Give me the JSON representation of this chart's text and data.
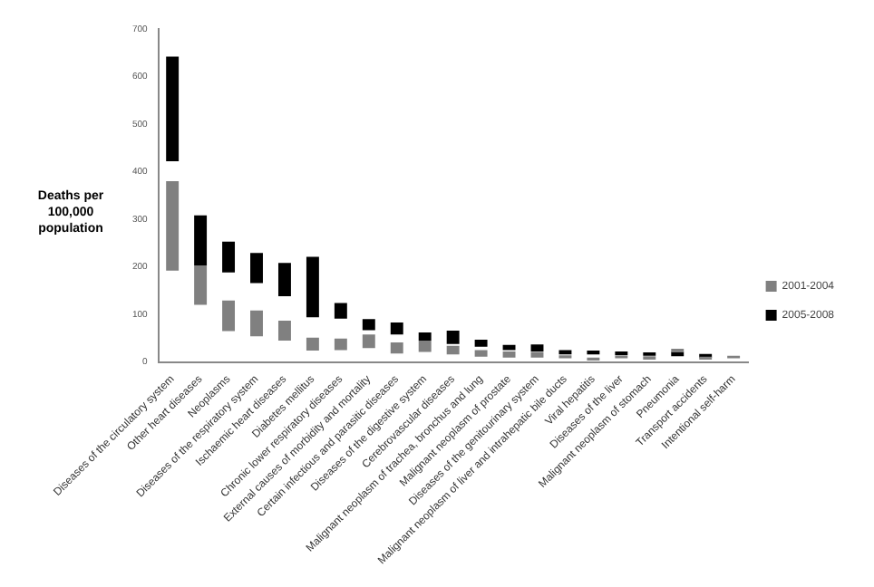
{
  "chart_data": {
    "type": "bar",
    "ylabel": "Deaths per 100,000 population",
    "categories": [
      "Diseases of the circulatory system",
      "Other heart diseases",
      "Neoplasms",
      "Diseases of the respiratory system",
      "Ischaemic heart diseases",
      "Diabetes mellitus",
      "Chronic lower respiratory diseases",
      "External causes of morbidity and mortality",
      "Certain infectious and parasitic diseases",
      "Diseases of the digestive system",
      "Cerebrovascular diseases",
      "Malignant neoplasm of trachea, bronchus and lung",
      "Malignant neoplasm of prostate",
      "Diseases of the genitourinary system",
      "Malignant neoplasm of liver and intrahepatic bile ducts",
      "Viral hepatitis",
      "Diseases of the liver",
      "Malignant neoplasm of stomach",
      "Pneumonia",
      "Transport accidents",
      "Intentional self-harm"
    ],
    "series": [
      {
        "name": "2001-2004",
        "color": "#808080",
        "base": [
          192,
          120,
          65,
          54,
          45,
          24,
          25,
          29,
          18,
          21,
          16,
          11,
          9,
          9,
          8,
          3,
          8,
          5,
          20,
          5,
          8
        ],
        "values": [
          188,
          83,
          64,
          54,
          42,
          27,
          24,
          29,
          23,
          24,
          18,
          14,
          13,
          12,
          6,
          6,
          5,
          7,
          8,
          6,
          5
        ]
      },
      {
        "name": "2005-2008",
        "color": "#000000",
        "base": [
          422,
          203,
          188,
          166,
          138,
          94,
          91,
          67,
          58,
          45,
          38,
          32,
          25,
          22,
          16,
          16,
          14,
          13,
          12,
          9,
          null
        ],
        "values": [
          220,
          105,
          65,
          63,
          70,
          127,
          33,
          23,
          25,
          17,
          28,
          15,
          11,
          15,
          9,
          8,
          8,
          7,
          9,
          8,
          null
        ]
      }
    ],
    "ylim": [
      0,
      700
    ],
    "yticks": [
      0,
      100,
      200,
      300,
      400,
      500,
      600,
      700
    ],
    "grid": false,
    "legend": "right"
  }
}
